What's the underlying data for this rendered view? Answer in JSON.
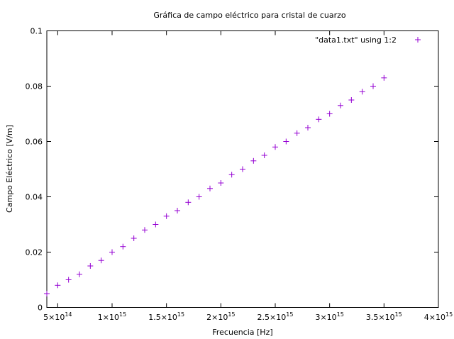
{
  "chart_data": {
    "type": "scatter",
    "title": "Gráfica de campo eléctrico para cristal de cuarzo",
    "xlabel": "Frecuencia [Hz]",
    "ylabel": "Campo Eléctrico [V/m]",
    "xlim": [
      400000000000000,
      4000000000000000
    ],
    "ylim": [
      0,
      0.1
    ],
    "grid": false,
    "legend_position": "top-right",
    "x_ticks": [
      {
        "value": 500000000000000,
        "mantissa": "5",
        "exponent": "14"
      },
      {
        "value": 1000000000000000,
        "mantissa": "1",
        "exponent": "15"
      },
      {
        "value": 1500000000000000,
        "mantissa": "1.5",
        "exponent": "15"
      },
      {
        "value": 2000000000000000,
        "mantissa": "2",
        "exponent": "15"
      },
      {
        "value": 2500000000000000,
        "mantissa": "2.5",
        "exponent": "15"
      },
      {
        "value": 3000000000000000,
        "mantissa": "3",
        "exponent": "15"
      },
      {
        "value": 3500000000000000,
        "mantissa": "3.5",
        "exponent": "15"
      },
      {
        "value": 4000000000000000,
        "mantissa": "4",
        "exponent": "15"
      }
    ],
    "times_sign": "×10",
    "y_ticks": [
      {
        "value": 0,
        "label": "0"
      },
      {
        "value": 0.02,
        "label": "0.02"
      },
      {
        "value": 0.04,
        "label": "0.04"
      },
      {
        "value": 0.06,
        "label": "0.06"
      },
      {
        "value": 0.08,
        "label": "0.08"
      },
      {
        "value": 0.1,
        "label": "0.1"
      }
    ],
    "series": [
      {
        "name": "\"data1.txt\" using 1:2",
        "color": "#9400d3",
        "marker": "plus",
        "x": [
          400000000000000,
          500000000000000,
          600000000000000,
          700000000000000,
          800000000000000,
          900000000000000,
          1000000000000000,
          1100000000000000,
          1200000000000000,
          1300000000000000,
          1400000000000000,
          1500000000000000,
          1600000000000000,
          1700000000000000,
          1800000000000000,
          1900000000000000,
          2000000000000000,
          2100000000000000,
          2200000000000000,
          2300000000000000,
          2400000000000000,
          2500000000000000,
          2600000000000000,
          2700000000000000,
          2800000000000000,
          2900000000000000,
          3000000000000000,
          3100000000000000,
          3200000000000000,
          3300000000000000,
          3400000000000000,
          3500000000000000
        ],
        "y": [
          0.005,
          0.008,
          0.01,
          0.012,
          0.015,
          0.017,
          0.02,
          0.022,
          0.025,
          0.028,
          0.03,
          0.033,
          0.035,
          0.038,
          0.04,
          0.043,
          0.045,
          0.048,
          0.05,
          0.053,
          0.055,
          0.058,
          0.06,
          0.063,
          0.065,
          0.068,
          0.07,
          0.073,
          0.075,
          0.078,
          0.08,
          0.083
        ]
      }
    ]
  }
}
